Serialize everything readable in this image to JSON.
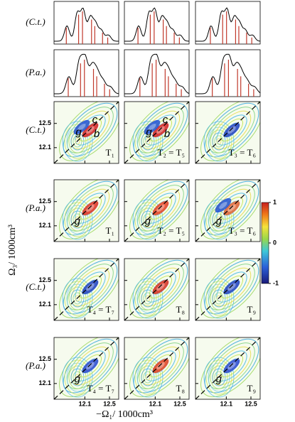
{
  "figure": {
    "y_label": "Ω₃/ 1000cm³",
    "x_label": "−Ω₁/ 1000cm³",
    "xlim": [
      11.6,
      12.65
    ],
    "ylim": [
      11.84,
      12.86
    ],
    "xticks": [
      12.1,
      12.5
    ],
    "yticks": [
      12.1,
      12.5
    ],
    "colorbar": {
      "lim": [
        -1,
        1
      ],
      "ticks": [
        1,
        0,
        -1
      ]
    },
    "spectra_rows": [
      {
        "label": "(C.t.)"
      },
      {
        "label": "(P.a.)"
      }
    ],
    "map_rows": [
      {
        "label": "(C.t.)",
        "panels": [
          {
            "label": "T₁",
            "annotations": [
              "c",
              "g",
              "b"
            ]
          },
          {
            "label": "T₂ = T₅",
            "annotations": [
              "c",
              "g",
              "b"
            ]
          },
          {
            "label": "T₃ = T₆"
          }
        ]
      },
      {
        "label": "(P.a.)",
        "panels": [
          {
            "label": "T₁",
            "annotations": [
              "g"
            ]
          },
          {
            "label": "T₂ = T₅",
            "annotations": [
              "g"
            ]
          },
          {
            "label": "T₃ = T₆",
            "annotations": [
              "g"
            ]
          }
        ]
      },
      {
        "label": "(C.t.)",
        "panels": [
          {
            "label": "T₄ = T₇"
          },
          {
            "label": "T₈"
          },
          {
            "label": "T₉"
          }
        ]
      },
      {
        "label": "(P.a.)",
        "panels": [
          {
            "label": "T₄ = T₇",
            "annotations": [
              "g"
            ]
          },
          {
            "label": "T₈"
          },
          {
            "label": "T₉",
            "annotations": [
              "g"
            ]
          }
        ]
      }
    ]
  }
}
